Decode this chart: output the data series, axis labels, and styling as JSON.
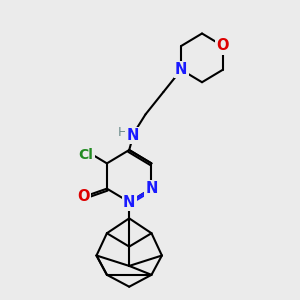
{
  "bg_color": "#ebebeb",
  "bond_color": "#000000",
  "bond_width": 1.5,
  "atom_colors": {
    "N": "#1a1aff",
    "O": "#dd0000",
    "Cl": "#228B22",
    "H": "#6a8a8a",
    "C": "#000000"
  },
  "font_size_atom": 10.5,
  "font_size_H": 9,
  "font_size_Cl": 10
}
